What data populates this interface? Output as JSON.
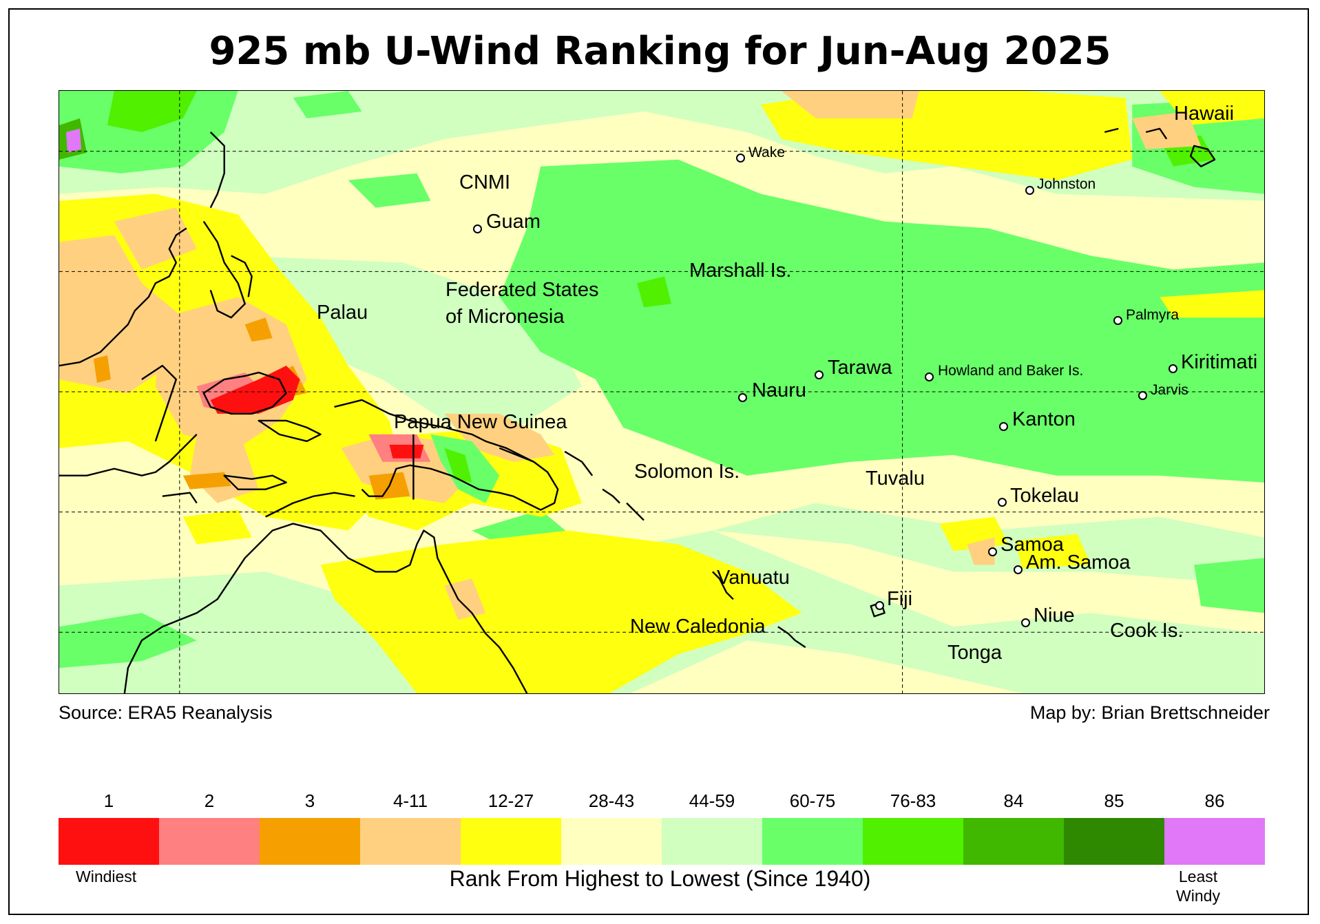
{
  "title": "925 mb U-Wind Ranking for Jun-Aug 2025",
  "source": "Source: ERA5 Reanalysis",
  "credit": "Map by: Brian Brettschneider",
  "labels": {
    "hawaii": "Hawaii",
    "wake": "Wake",
    "johnston": "Johnston",
    "cnmi": "CNMI",
    "guam": "Guam",
    "marshall": "Marshall Is.",
    "palau": "Palau",
    "fsm1": "Federated States",
    "fsm2": "of Micronesia",
    "palmyra": "Palmyra",
    "kiritimati": "Kiritimati",
    "tarawa": "Tarawa",
    "howland": "Howland and Baker Is.",
    "jarvis": "Jarvis",
    "nauru": "Nauru",
    "kanton": "Kanton",
    "png": "Papua New Guinea",
    "solomon": "Solomon Is.",
    "tuvalu": "Tuvalu",
    "tokelau": "Tokelau",
    "samoa": "Samoa",
    "amsamoa": "Am. Samoa",
    "vanuatu": "Vanuatu",
    "fiji": "Fiji",
    "niue": "Niue",
    "newcaledonia": "New Caledonia",
    "cook": "Cook Is.",
    "tonga": "Tonga"
  },
  "legend": {
    "categories": [
      "1",
      "2",
      "3",
      "4-11",
      "12-27",
      "28-43",
      "44-59",
      "60-75",
      "76-83",
      "84",
      "85",
      "86"
    ],
    "colors": [
      "#ff1010",
      "#ff8080",
      "#f5a000",
      "#ffd080",
      "#ffff10",
      "#ffffc0",
      "#d0ffc0",
      "#68ff68",
      "#50f000",
      "#40b800",
      "#2e8800",
      "#e078f8"
    ],
    "low_label": "Windiest",
    "high_label_1": "Least",
    "high_label_2": "Windy",
    "caption": "Rank From Highest to Lowest (Since 1940)"
  }
}
